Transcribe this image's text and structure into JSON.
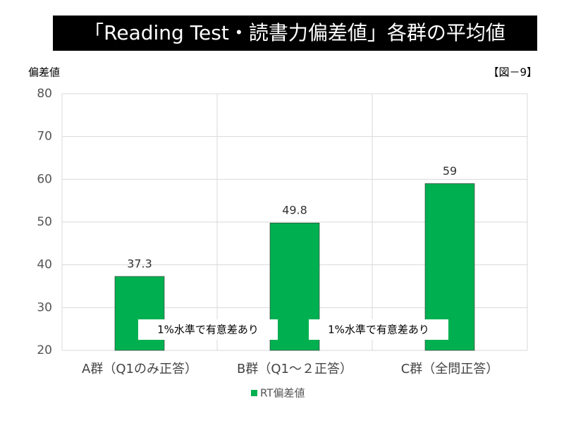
{
  "chart_data": {
    "type": "bar",
    "title": "「Reading Test・読書力偏差値」各群の平均値",
    "figure_label": "【図－9】",
    "y_axis_label": "偏差値",
    "categories": [
      "A群（Q1のみ正答）",
      "B群（Q1～２正答）",
      "C群（全問正答）"
    ],
    "series": [
      {
        "name": "RT偏差値",
        "color": "#00b050",
        "values": [
          37.3,
          49.8,
          59
        ]
      }
    ],
    "ylim": [
      20,
      80
    ],
    "yticks": [
      20,
      30,
      40,
      50,
      60,
      70,
      80
    ],
    "grid": true,
    "legend": "bottom",
    "annotations": [
      "1%水準で有意差あり",
      "1%水準で有意差あり"
    ]
  }
}
